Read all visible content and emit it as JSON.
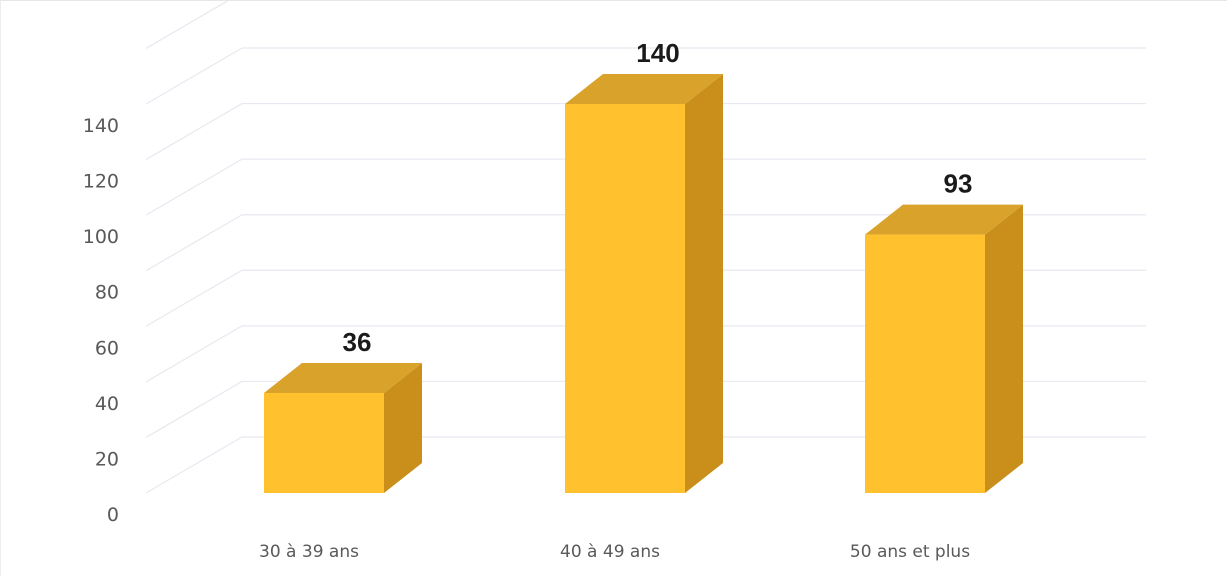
{
  "chart_data": {
    "type": "bar",
    "categories": [
      "30 à 39 ans",
      "40 à 49 ans",
      "50 ans et plus"
    ],
    "values": [
      36,
      140,
      93
    ],
    "data_labels": [
      "36",
      "140",
      "93"
    ],
    "yticks": [
      "0",
      "20",
      "40",
      "60",
      "80",
      "100",
      "120",
      "140"
    ],
    "ylim": [
      0,
      140
    ],
    "grid": true,
    "legend": "none",
    "style": "3d-column",
    "colors": {
      "front": "#FFC12D",
      "top": "#D9A22A",
      "side": "#C98F1A",
      "gridline": "#E8E8F0",
      "tick_text": "#595959",
      "data_label": "#1A1A1A"
    }
  }
}
